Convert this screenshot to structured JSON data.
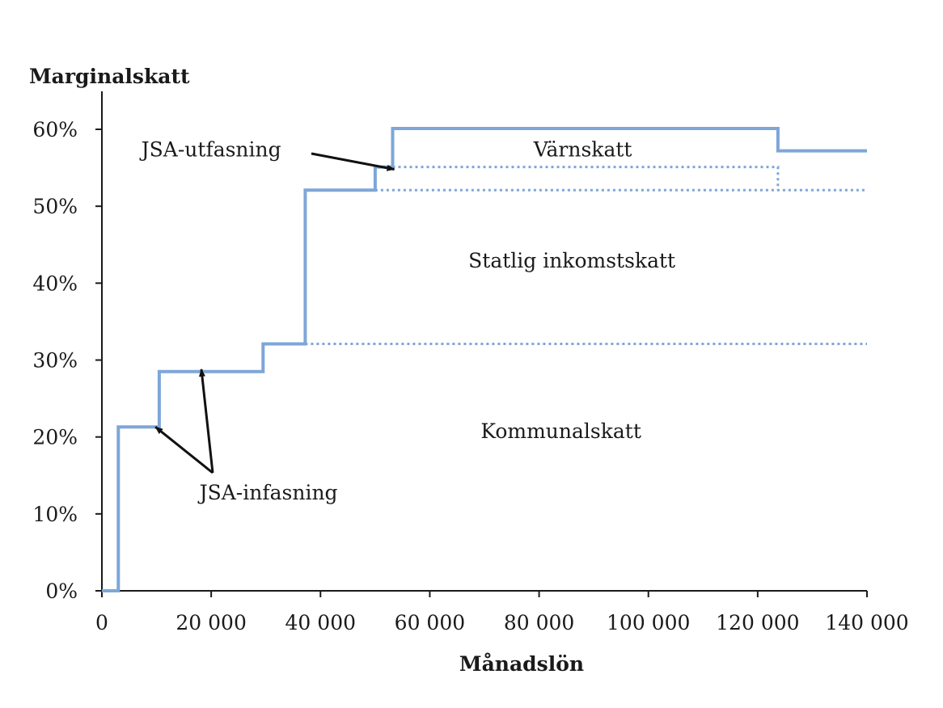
{
  "chart_data": {
    "type": "line",
    "title": "",
    "ylabel": "Marginalskatt",
    "xlabel": "Månadslön",
    "xlim": [
      0,
      140000
    ],
    "ylim": [
      0,
      0.6
    ],
    "x_ticks": [
      0,
      20000,
      40000,
      60000,
      80000,
      100000,
      120000,
      140000
    ],
    "x_tick_labels": [
      "0",
      "20 000",
      "40 000",
      "60 000",
      "80 000",
      "100 000",
      "120 000",
      "140 000"
    ],
    "y_ticks": [
      0,
      0.1,
      0.2,
      0.3,
      0.4,
      0.5,
      0.6
    ],
    "y_tick_labels": [
      "0%",
      "10%",
      "20%",
      "30%",
      "40%",
      "50%",
      "60%"
    ],
    "grid": false,
    "line_color": "#7ea6d8",
    "series": [
      {
        "style": "solid",
        "points": [
          [
            0,
            0
          ],
          [
            3000,
            0
          ],
          [
            3000,
            0.213
          ],
          [
            10500,
            0.213
          ],
          [
            10500,
            0.285
          ],
          [
            29500,
            0.285
          ],
          [
            29500,
            0.321
          ],
          [
            37200,
            0.321
          ],
          [
            37200,
            0.521
          ],
          [
            50000,
            0.521
          ],
          [
            50000,
            0.551
          ],
          [
            53200,
            0.551
          ],
          [
            53200,
            0.601
          ],
          [
            123700,
            0.601
          ],
          [
            123700,
            0.572
          ],
          [
            140000,
            0.572
          ]
        ]
      },
      {
        "style": "dotted",
        "points": [
          [
            37200,
            0.321
          ],
          [
            140000,
            0.321
          ]
        ]
      },
      {
        "style": "dotted",
        "points": [
          [
            50000,
            0.521
          ],
          [
            140000,
            0.521
          ]
        ]
      },
      {
        "style": "dotted",
        "points": [
          [
            53200,
            0.551
          ],
          [
            123700,
            0.551
          ],
          [
            123700,
            0.521
          ]
        ]
      }
    ],
    "region_labels": [
      {
        "text": "Värnskatt",
        "x": 88000,
        "y": 0.574
      },
      {
        "text": "Statlig inkomstskatt",
        "x": 86000,
        "y": 0.43
      },
      {
        "text": "Kommunalskatt",
        "x": 84000,
        "y": 0.208
      }
    ],
    "annotations": [
      {
        "text": "JSA-utfasning",
        "x": 20000,
        "y": 0.574,
        "targets": [
          [
            53500,
            0.548
          ]
        ]
      },
      {
        "text": "JSA-infasning",
        "x": 30500,
        "y": 0.128,
        "targets": [
          [
            9800,
            0.213
          ],
          [
            18200,
            0.288
          ]
        ]
      }
    ]
  }
}
